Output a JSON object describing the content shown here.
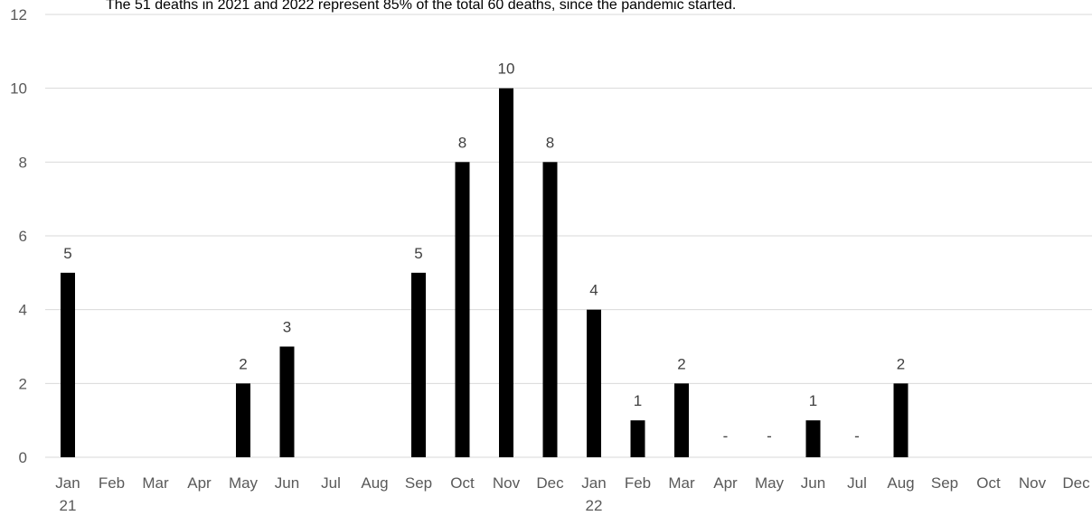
{
  "chart_data": {
    "type": "bar",
    "subtitle": "The 51 deaths in 2021 and 2022 represent 85% of the total 60 deaths, since the pandemic started.",
    "categories": [
      "Jan",
      "Feb",
      "Mar",
      "Apr",
      "May",
      "Jun",
      "Jul",
      "Aug",
      "Sep",
      "Oct",
      "Nov",
      "Dec",
      "Jan",
      "Feb",
      "Mar",
      "Apr",
      "May",
      "Jun",
      "Jul",
      "Aug",
      "Sep",
      "Oct",
      "Nov",
      "Dec"
    ],
    "year_labels": [
      {
        "index": 0,
        "label": "21"
      },
      {
        "index": 12,
        "label": "22"
      }
    ],
    "values": [
      5,
      null,
      null,
      null,
      2,
      3,
      null,
      null,
      5,
      8,
      10,
      8,
      4,
      1,
      2,
      0,
      0,
      1,
      0,
      2,
      null,
      null,
      null,
      null
    ],
    "data_labels": [
      "5",
      "",
      "",
      "",
      "2",
      "3",
      "",
      "",
      "5",
      "8",
      "10",
      "8",
      "4",
      "1",
      "2",
      "-",
      "-",
      "1",
      "-",
      "2",
      "",
      "",
      "",
      ""
    ],
    "ylim": [
      0,
      12
    ],
    "yticks": [
      0,
      2,
      4,
      6,
      8,
      10,
      12
    ],
    "grid": true,
    "legend": "none",
    "bar_color": "#000000"
  }
}
